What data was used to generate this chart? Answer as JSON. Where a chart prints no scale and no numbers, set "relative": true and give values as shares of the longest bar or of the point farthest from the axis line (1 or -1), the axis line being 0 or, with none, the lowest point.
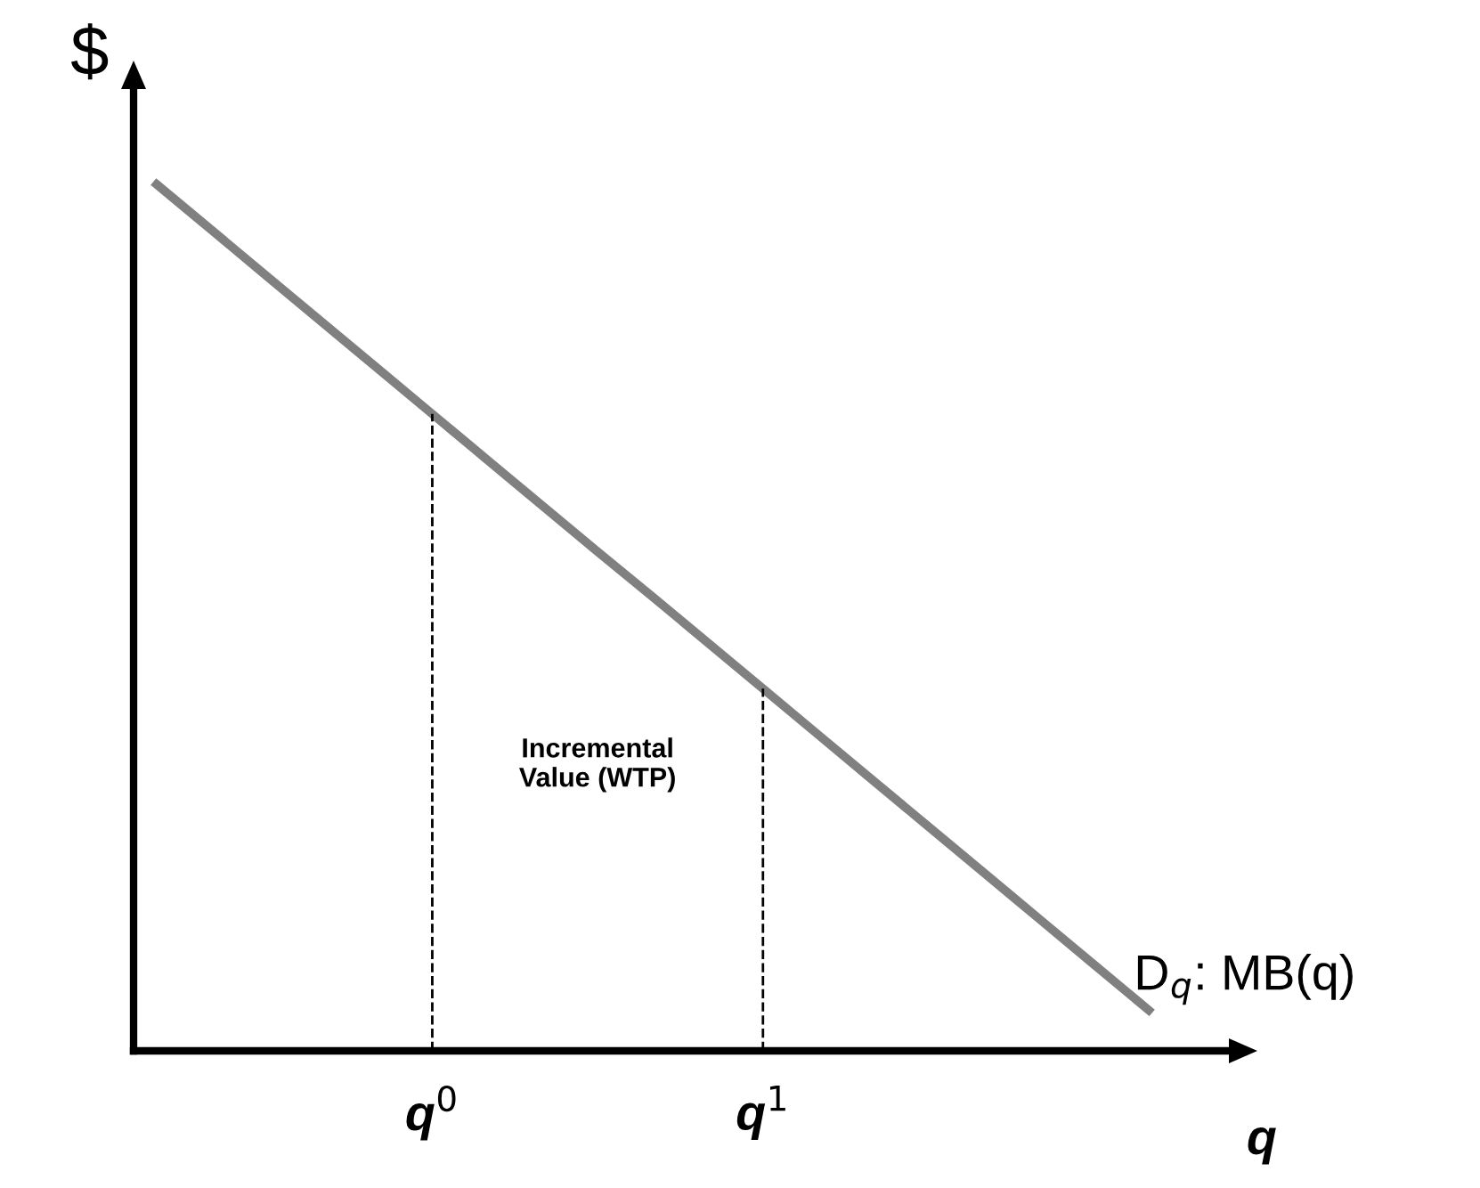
{
  "chart_data": {
    "type": "line",
    "relative": true,
    "xlabel": "q",
    "ylabel": "$",
    "categories": [
      null,
      null,
      null,
      null,
      null,
      "q$^{0}$",
      null,
      null,
      null,
      null,
      null,
      "q$^{1}$",
      null,
      null,
      null,
      null,
      null,
      null,
      null
    ],
    "series": [
      {
        "name": "D$_{q}$: MB(q)",
        "color": "#808080",
        "values": [
          1,
          0.947,
          0.894,
          0.841,
          0.788,
          0.735,
          0.682,
          0.629,
          0.576,
          0.524,
          0.471,
          0.418,
          0.365,
          0.312,
          0.259,
          0.206,
          0.153,
          0.1,
          0.047
        ]
      }
    ],
    "ref_lines": [
      {
        "axis": "x",
        "value": "q$^{0}$",
        "line_style": "dashed",
        "color": "#000000"
      },
      {
        "axis": "x",
        "value": "q$^{1}$",
        "line_style": "dashed",
        "color": "#000000"
      }
    ],
    "annotations": [
      "Incremental\nValue (WTP)"
    ],
    "grid": false,
    "legend": false,
    "marker": "none",
    "line_style": "solid"
  }
}
